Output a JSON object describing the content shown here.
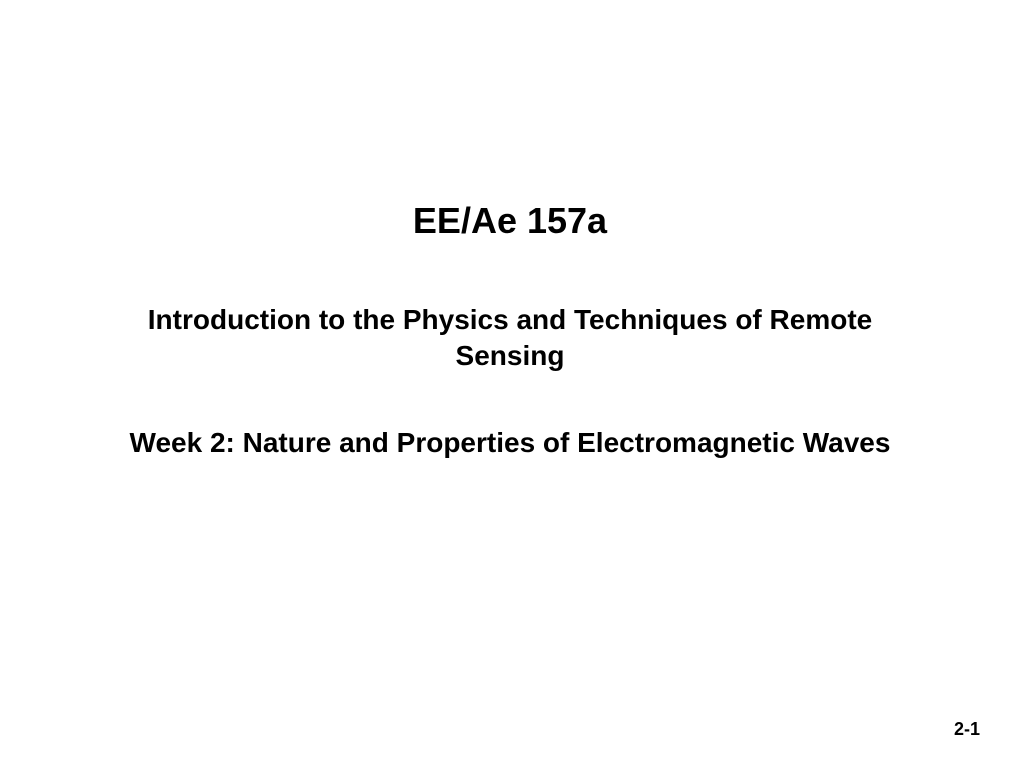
{
  "slide": {
    "course_code": "EE/Ae 157a",
    "course_title": "Introduction to the Physics and Techniques of Remote Sensing",
    "week_title": "Week 2: Nature and Properties of Electromagnetic Waves",
    "page_number": "2-1"
  },
  "styling": {
    "background_color": "#ffffff",
    "text_color": "#000000",
    "course_code_fontsize": 36,
    "subtitle_fontsize": 28,
    "page_number_fontsize": 18,
    "font_weight": "bold",
    "font_family": "Arial, Helvetica, sans-serif"
  }
}
